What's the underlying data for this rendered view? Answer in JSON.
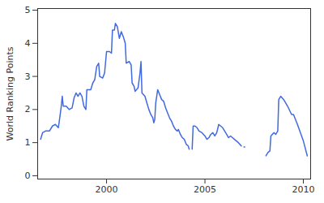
{
  "chart_data": {
    "type": "line",
    "y_label": "World Ranking Points",
    "xlim": [
      1996.5,
      2010.37
    ],
    "xticks": [
      2000,
      2005,
      2010
    ],
    "ylim": [
      -0.1,
      5.05
    ],
    "yticks": [
      0,
      1,
      2,
      3,
      4,
      5
    ],
    "grid": false,
    "color": "#4169e1",
    "x": [
      1996.65,
      1996.75,
      1996.9,
      1997.1,
      1997.25,
      1997.4,
      1997.55,
      1997.6,
      1997.7,
      1997.75,
      1997.8,
      1997.95,
      1998.1,
      1998.25,
      1998.35,
      1998.45,
      1998.55,
      1998.65,
      1998.75,
      1998.85,
      1998.95,
      1999.0,
      1999.2,
      1999.3,
      1999.4,
      1999.5,
      1999.6,
      1999.65,
      1999.8,
      1999.9,
      2000.0,
      2000.15,
      2000.25,
      2000.3,
      2000.4,
      2000.45,
      2000.55,
      2000.65,
      2000.75,
      2000.85,
      2000.95,
      2001.0,
      2001.15,
      2001.25,
      2001.3,
      2001.4,
      2001.45,
      2001.6,
      2001.7,
      2001.75,
      2001.8,
      2001.95,
      2002.05,
      2002.15,
      2002.25,
      2002.35,
      2002.4,
      2002.45,
      2002.5,
      2002.6,
      2002.7,
      2002.8,
      2002.9,
      2003.0,
      2003.1,
      2003.2,
      2003.3,
      2003.4,
      2003.5,
      2003.6,
      2003.65,
      2003.75,
      2003.85,
      2003.95,
      2004.05,
      2004.15,
      2004.2,
      2004.28,
      2004.35,
      2004.4,
      2004.5,
      2004.6,
      2004.7,
      2004.85,
      2005.0,
      2005.1,
      2005.2,
      2005.3,
      2005.4,
      2005.5,
      2005.6,
      2005.7,
      2005.8,
      2005.9,
      2006.0,
      2006.1,
      2006.2,
      2006.3,
      2006.4,
      2006.5,
      2006.6,
      2006.7,
      2006.85,
      2006.92,
      2006.98,
      2007.02,
      2007.5,
      2008.1,
      2008.2,
      2008.3,
      2008.35,
      2008.5,
      2008.6,
      2008.7,
      2008.75,
      2008.85,
      2009.0,
      2009.2,
      2009.4,
      2009.5,
      2009.7,
      2010.0,
      2010.2
    ],
    "values": [
      1.1,
      1.3,
      1.35,
      1.35,
      1.5,
      1.55,
      1.45,
      1.65,
      2.1,
      2.4,
      2.1,
      2.1,
      2.0,
      2.05,
      2.35,
      2.5,
      2.4,
      2.5,
      2.4,
      2.1,
      2.0,
      2.6,
      2.6,
      2.8,
      2.9,
      3.3,
      3.4,
      3.0,
      2.95,
      3.1,
      3.75,
      3.75,
      3.7,
      4.4,
      4.4,
      4.6,
      4.5,
      4.15,
      4.35,
      4.2,
      4.0,
      3.4,
      3.45,
      3.35,
      2.8,
      2.7,
      2.55,
      2.65,
      3.1,
      3.45,
      2.5,
      2.4,
      2.2,
      2.0,
      1.85,
      1.75,
      1.6,
      1.7,
      2.2,
      2.6,
      2.45,
      2.3,
      2.25,
      2.05,
      1.9,
      1.75,
      1.65,
      1.5,
      1.4,
      1.35,
      1.4,
      1.25,
      1.15,
      1.1,
      0.95,
      0.9,
      0.8,
      null,
      0.8,
      1.5,
      1.5,
      1.45,
      1.35,
      1.3,
      1.2,
      1.1,
      1.15,
      1.25,
      1.3,
      1.2,
      1.3,
      1.55,
      1.5,
      1.45,
      1.35,
      1.25,
      1.15,
      1.2,
      1.15,
      1.1,
      1.05,
      1.0,
      0.9,
      null,
      0.87,
      0.87,
      null,
      0.6,
      0.7,
      0.75,
      1.2,
      1.3,
      1.25,
      1.35,
      2.3,
      2.4,
      2.3,
      2.1,
      1.85,
      1.85,
      1.55,
      1.05,
      0.6
    ]
  }
}
